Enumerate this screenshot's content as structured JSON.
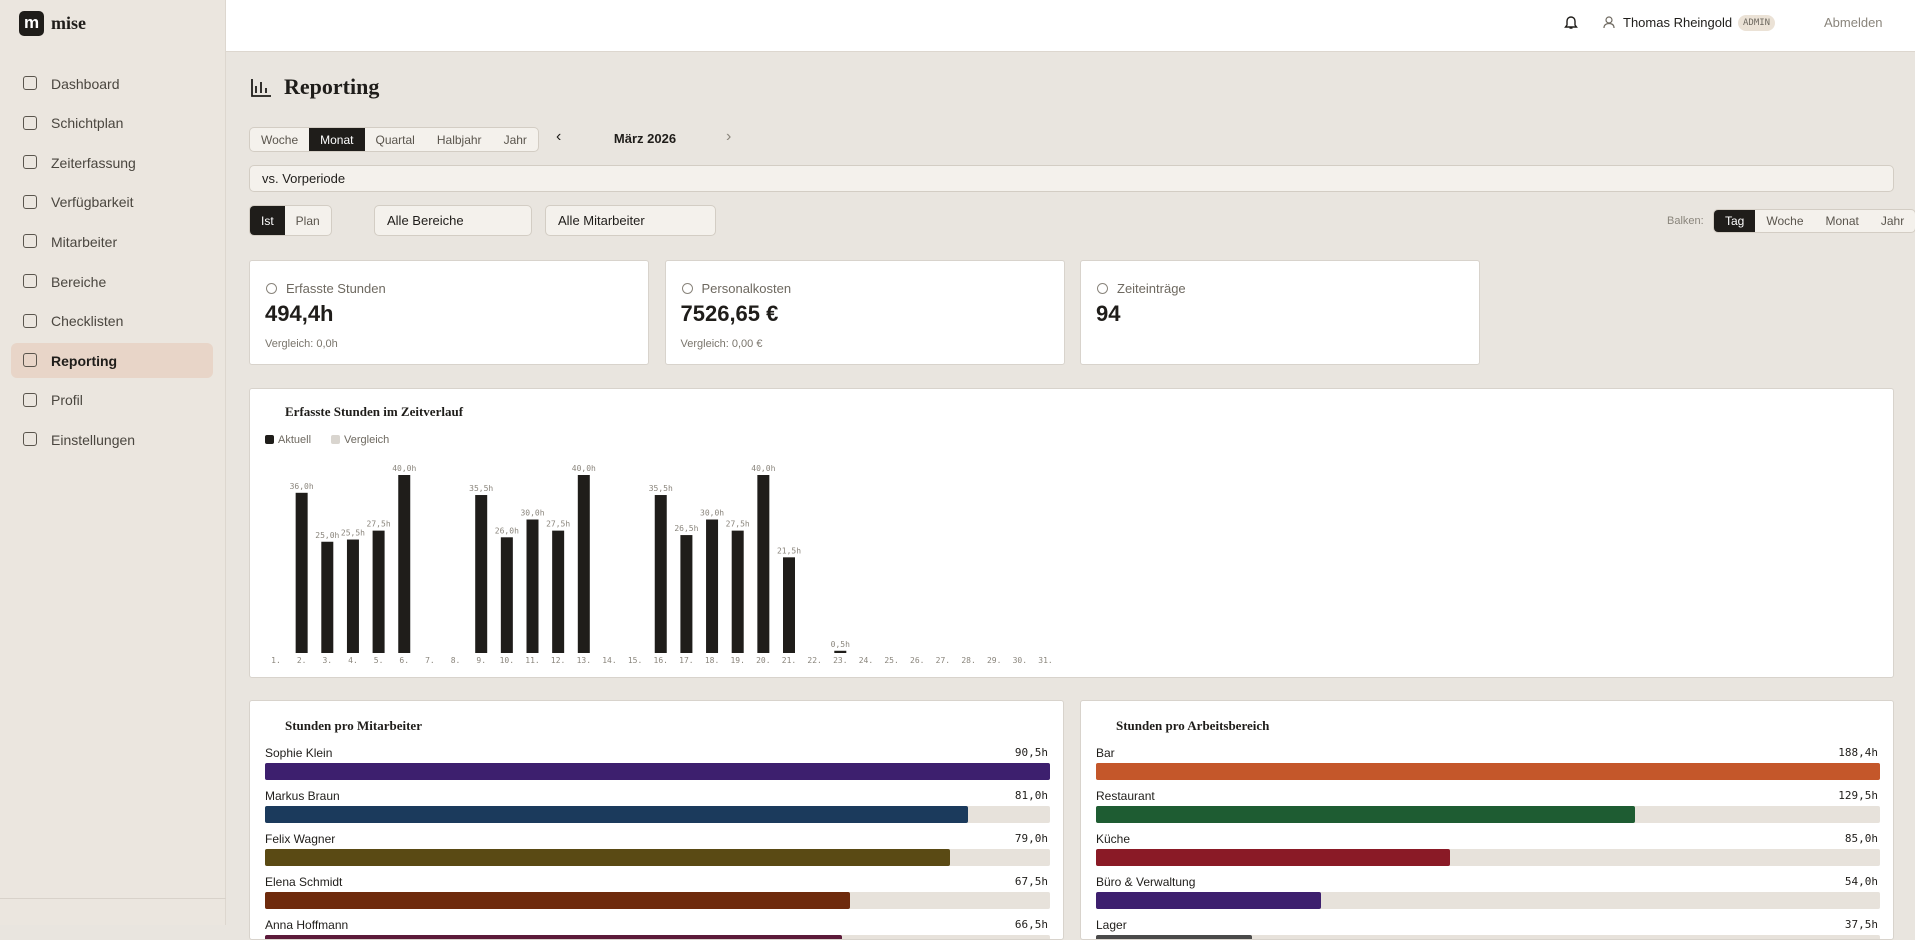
{
  "app": {
    "logo": "m",
    "name": "mise"
  },
  "nav": [
    "Dashboard",
    "Schichtplan",
    "Zeiterfassung",
    "Verfügbarkeit",
    "Mitarbeiter",
    "Bereiche",
    "Checklisten",
    "Reporting",
    "Profil",
    "Einstellungen"
  ],
  "nav_active": 7,
  "header": {
    "user": "Thomas Rheingold",
    "role": "ADMIN",
    "logout": "Abmelden"
  },
  "page": {
    "title": "Reporting"
  },
  "period_tabs": [
    "Woche",
    "Monat",
    "Quartal",
    "Halbjahr",
    "Jahr"
  ],
  "period_active": 1,
  "period": "März 2026",
  "compare": "vs. Vorperiode",
  "mode_tabs": [
    "Ist",
    "Plan"
  ],
  "mode_active": 0,
  "filters": [
    "Alle Bereiche",
    "Alle Mitarbeiter"
  ],
  "bars_label": "Balken:",
  "bar_tabs": [
    "Tag",
    "Woche",
    "Monat",
    "Jahr"
  ],
  "bar_active": 0,
  "stats": [
    {
      "label": "Erfasste Stunden",
      "value": "494,4h",
      "comparison": "Vergleich: 0,0h"
    },
    {
      "label": "Personalkosten",
      "value": "7526,65 €",
      "comparison": "Vergleich: 0,00 €"
    },
    {
      "label": "Zeiteinträge",
      "value": "94"
    }
  ],
  "chart_data": [
    {
      "type": "bar",
      "title": "Erfasste Stunden im Zeitverlauf",
      "categories": [
        "1.",
        "2.",
        "3.",
        "4.",
        "5.",
        "6.",
        "7.",
        "8.",
        "9.",
        "10.",
        "11.",
        "12.",
        "13.",
        "14.",
        "15.",
        "16.",
        "17.",
        "18.",
        "19.",
        "20.",
        "21.",
        "22.",
        "23.",
        "24.",
        "25.",
        "26.",
        "27.",
        "28.",
        "29.",
        "30.",
        "31."
      ],
      "series": [
        {
          "name": "Aktuell",
          "color": "#1f1d1a",
          "values": [
            null,
            36,
            25,
            25.5,
            27.5,
            40,
            null,
            null,
            35.5,
            26,
            30,
            27.5,
            40,
            null,
            null,
            35.5,
            26.5,
            30,
            27.5,
            40,
            21.5,
            null,
            0.5,
            null,
            null,
            null,
            null,
            null,
            null,
            null,
            null
          ],
          "value_labels": [
            null,
            "36,0h",
            "25,0h",
            "25,5h",
            "27,5h",
            "40,0h",
            null,
            null,
            "35,5h",
            "26,0h",
            "30,0h",
            "27,5h",
            "40,0h",
            null,
            null,
            "35,5h",
            "26,5h",
            "30,0h",
            "27,5h",
            "40,0h",
            "21,5h",
            null,
            "0,5h",
            null,
            null,
            null,
            null,
            null,
            null,
            null,
            null
          ]
        },
        {
          "name": "Vergleich",
          "color": "#d9d5cf"
        }
      ]
    },
    {
      "type": "hbar",
      "title": "Stunden pro Mitarbeiter",
      "categories": [
        "Sophie Klein",
        "Markus Braun",
        "Felix Wagner",
        "Elena Schmidt",
        "Anna Hoffmann"
      ],
      "values": [
        90.5,
        81,
        79,
        67.5,
        66.5
      ],
      "value_labels": [
        "90,5h",
        "81,0h",
        "79,0h",
        "67,5h",
        "66,5h"
      ],
      "colors": [
        "#3d1f6e",
        "#1b3a5c",
        "#5a4a14",
        "#6e2a0c",
        "#5c1a3a"
      ]
    },
    {
      "type": "hbar",
      "title": "Stunden pro Arbeitsbereich",
      "categories": [
        "Bar",
        "Restaurant",
        "Küche",
        "Büro & Verwaltung",
        "Lager"
      ],
      "values": [
        188.4,
        129.5,
        85,
        54,
        37.5
      ],
      "value_labels": [
        "188,4h",
        "129,5h",
        "85,0h",
        "54,0h",
        "37,5h"
      ],
      "colors": [
        "#c4572a",
        "#1e5c32",
        "#8a1a26",
        "#3d1f6e",
        "#4a4a4a"
      ]
    }
  ]
}
